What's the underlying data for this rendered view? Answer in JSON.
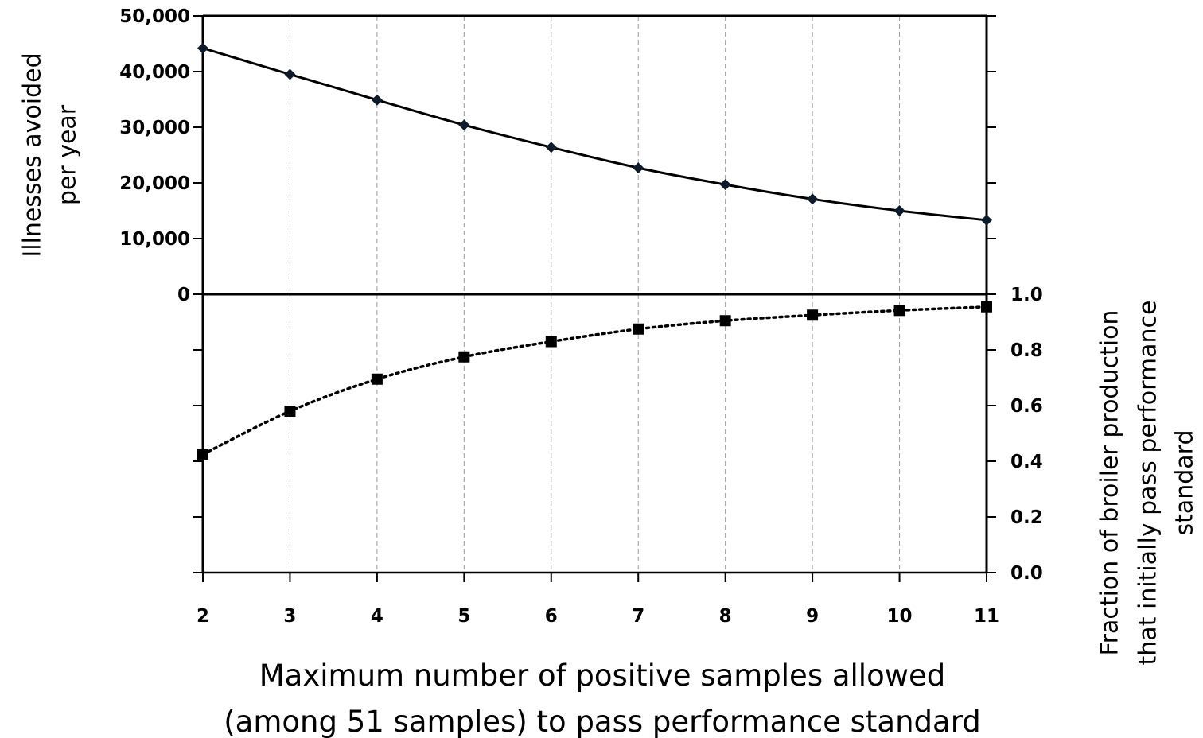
{
  "chart_data": {
    "type": "line",
    "panels": 2,
    "grid": "vertical dashed",
    "x": [
      2,
      3,
      4,
      5,
      6,
      7,
      8,
      9,
      10,
      11
    ],
    "xlabel_lines": [
      "Maximum number of positive samples allowed",
      "(among 51 samples) to pass performance  standard"
    ],
    "top": {
      "ylabel_lines": [
        "Illnesses avoided",
        "per year"
      ],
      "ylim": [
        0,
        50000
      ],
      "yticks": [
        0,
        10000,
        20000,
        30000,
        40000,
        50000
      ],
      "ytick_labels": [
        "0",
        "10,000",
        "20,000",
        "30,000",
        "40,000",
        "50,000"
      ],
      "series": [
        {
          "marker": "diamond",
          "line_style": "solid",
          "color": "#000000",
          "values": [
            44200,
            39500,
            34900,
            30400,
            26400,
            22700,
            19700,
            17100,
            15000,
            13300
          ]
        }
      ]
    },
    "bottom": {
      "ylabel_lines": [
        "Fraction of broiler production",
        "that initially pass performance",
        "standard"
      ],
      "ylim": [
        0.0,
        1.0
      ],
      "yticks": [
        0.0,
        0.2,
        0.4,
        0.6,
        0.8,
        1.0
      ],
      "ytick_labels": [
        "0.0",
        "0.2",
        "0.4",
        "0.6",
        "0.8",
        "1.0"
      ],
      "series": [
        {
          "marker": "square",
          "line_style": "dotted",
          "color": "#000000",
          "values": [
            0.425,
            0.58,
            0.695,
            0.775,
            0.83,
            0.875,
            0.905,
            0.925,
            0.942,
            0.955
          ]
        }
      ]
    }
  }
}
